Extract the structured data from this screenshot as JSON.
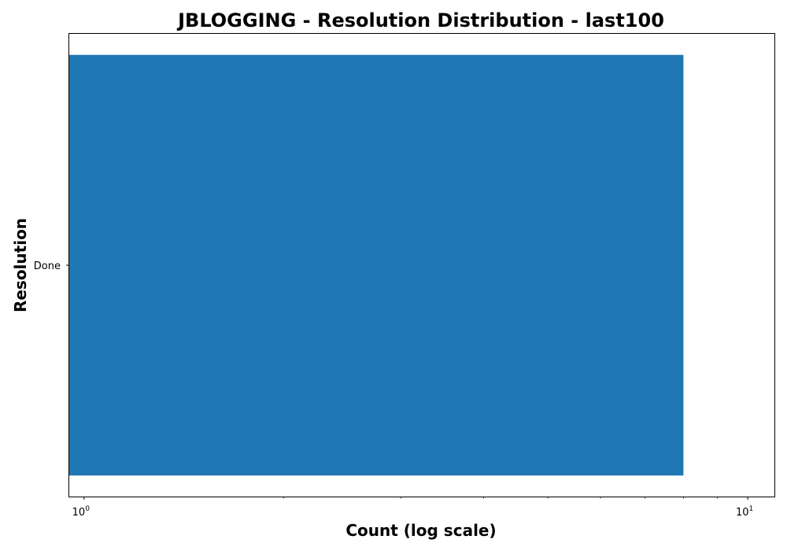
{
  "chart_data": {
    "type": "bar",
    "orientation": "horizontal",
    "title": "JBLOGGING - Resolution Distribution - last100",
    "xlabel": "Count (log scale)",
    "ylabel": "Resolution",
    "x_scale": "log",
    "xlim": [
      0.95,
      11
    ],
    "categories": [
      "Done"
    ],
    "values": [
      8
    ],
    "x_major_ticks": [
      {
        "value": 1,
        "base": "10",
        "exp": "0"
      },
      {
        "value": 10,
        "base": "10",
        "exp": "1"
      }
    ],
    "x_minor_ticks": [
      2,
      3,
      4,
      5,
      6,
      7,
      8,
      9
    ],
    "bar_color": "#1f77b4",
    "grid": false,
    "legend": "none"
  }
}
